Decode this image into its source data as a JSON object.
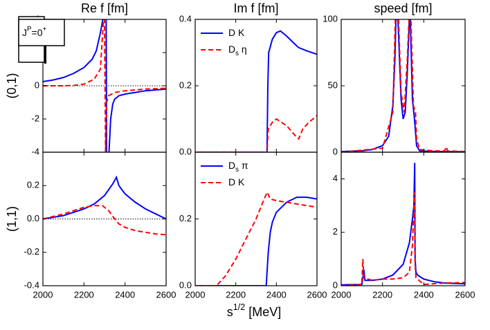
{
  "column_titles": [
    "Re f [fm]",
    "Im f [fm]",
    "speed [fm]"
  ],
  "row_labels": [
    "(0,1)",
    "(1,1)"
  ],
  "box_label": [
    "J",
    "P",
    "=0",
    "+"
  ],
  "x_label": [
    "s",
    "1/2",
    " [MeV]"
  ],
  "chart_data": [
    {
      "type": "line",
      "zero_line": true,
      "xlim": [
        2000,
        2600
      ],
      "xticks": [
        2000,
        2200,
        2400,
        2600
      ],
      "xtick_labels": false,
      "ylim": [
        -4,
        4
      ],
      "yticks": [
        -4,
        -2,
        0,
        2,
        4
      ],
      "series": [
        {
          "color": "#0000ff",
          "style": "solid",
          "x": [
            2000,
            2050,
            2100,
            2150,
            2200,
            2240,
            2260,
            2280,
            2292,
            2300,
            2308,
            2310,
            2316,
            2322,
            2330,
            2340,
            2350,
            2370,
            2400,
            2450,
            2500,
            2550,
            2600
          ],
          "values": [
            0.25,
            0.35,
            0.5,
            0.75,
            1.1,
            1.6,
            2.1,
            3.2,
            4,
            null,
            4,
            -4,
            null,
            -4,
            -2,
            -1.1,
            -0.8,
            -0.6,
            -0.5,
            -0.4,
            -0.3,
            -0.25,
            -0.2
          ]
        },
        {
          "color": "#ff0000",
          "style": "dashed",
          "x": [
            2000,
            2100,
            2150,
            2200,
            2250,
            2280,
            2295,
            2300,
            2305,
            2310,
            2320,
            2350,
            2400,
            2500,
            2600
          ],
          "values": [
            0,
            0,
            0.02,
            0.1,
            0.4,
            1.0,
            4,
            4,
            -4,
            -1,
            -0.6,
            -0.4,
            -0.3,
            -0.2,
            -0.15
          ]
        }
      ]
    },
    {
      "type": "line",
      "legend": "upper left",
      "xlim": [
        2000,
        2600
      ],
      "xticks": [
        2000,
        2200,
        2400,
        2600
      ],
      "xtick_labels": false,
      "ylim": [
        0,
        0.4
      ],
      "yticks": [
        {
          "value": 0,
          "label": "0.0"
        },
        0.2,
        0.4
      ],
      "series": [
        {
          "name": [
            "D K"
          ],
          "color": "#0000ff",
          "style": "solid",
          "x": [
            2000,
            2354,
            2358,
            2362,
            2380,
            2400,
            2420,
            2450,
            2500,
            2510,
            2550,
            2600
          ],
          "values": [
            0,
            0,
            0.2,
            0.3,
            0.34,
            0.36,
            0.365,
            0.35,
            0.32,
            0.315,
            0.305,
            0.295
          ]
        },
        {
          "name": [
            "D",
            "s",
            " η"
          ],
          "color": "#ff0000",
          "style": "dashed",
          "x": [
            2000,
            2354,
            2360,
            2380,
            2400,
            2450,
            2500,
            2510,
            2530,
            2560,
            2600
          ],
          "values": [
            0,
            0,
            0.07,
            0.09,
            0.1,
            0.08,
            0.045,
            0.04,
            0.07,
            0.09,
            0.11
          ]
        }
      ]
    },
    {
      "type": "line",
      "xlim": [
        2000,
        2600
      ],
      "xticks": [
        2000,
        2200,
        2400,
        2600
      ],
      "xtick_labels": false,
      "ylim": [
        0,
        100
      ],
      "yticks": [
        0,
        50,
        100
      ],
      "series": [
        {
          "color": "#0000ff",
          "style": "solid",
          "x": [
            2000,
            2100,
            2150,
            2200,
            2230,
            2250,
            2260,
            2265,
            2275,
            2290,
            2300,
            2310,
            2320,
            2330,
            2335,
            2345,
            2355,
            2365,
            2380,
            2450,
            2600
          ],
          "values": [
            0.5,
            1,
            2,
            5,
            12,
            35,
            70,
            100,
            100,
            40,
            25,
            30,
            60,
            100,
            100,
            40,
            25,
            5,
            1,
            0.5,
            0.3
          ]
        },
        {
          "color": "#ff0000",
          "style": "dashed",
          "x": [
            2000,
            2200,
            2250,
            2262,
            2278,
            2290,
            2305,
            2320,
            2328,
            2338,
            2350,
            2360,
            2365,
            2380,
            2450,
            2500,
            2510,
            2515,
            2600
          ],
          "values": [
            0,
            3,
            30,
            100,
            100,
            45,
            30,
            70,
            100,
            100,
            35,
            30,
            10,
            2,
            1,
            1,
            4,
            1,
            0.5
          ]
        }
      ]
    },
    {
      "type": "line",
      "zero_line": true,
      "xlim": [
        2000,
        2600
      ],
      "xticks": [
        2000,
        2200,
        2400,
        2600
      ],
      "xtick_labels": true,
      "ylim": [
        -0.4,
        0.4
      ],
      "yticks": [
        -0.4,
        -0.2,
        {
          "value": 0,
          "label": "0.0"
        },
        0.2
      ],
      "series": [
        {
          "color": "#0000ff",
          "style": "solid",
          "x": [
            2000,
            2100,
            2200,
            2250,
            2300,
            2340,
            2358,
            2370,
            2400,
            2450,
            2500,
            2550,
            2600
          ],
          "values": [
            0,
            0.02,
            0.06,
            0.09,
            0.14,
            0.21,
            0.25,
            0.2,
            0.15,
            0.1,
            0.06,
            0.03,
            0
          ]
        },
        {
          "color": "#ff0000",
          "style": "dashed",
          "x": [
            2000,
            2100,
            2150,
            2200,
            2250,
            2290,
            2320,
            2350,
            2370,
            2400,
            2450,
            2500,
            2550,
            2600
          ],
          "values": [
            0,
            0.03,
            0.05,
            0.07,
            0.08,
            0.08,
            0.05,
            0,
            -0.03,
            -0.05,
            -0.07,
            -0.08,
            -0.09,
            -0.095
          ]
        }
      ]
    },
    {
      "type": "line",
      "legend": "upper left",
      "xlim": [
        2000,
        2600
      ],
      "xticks": [
        2000,
        2200,
        2400,
        2600
      ],
      "xtick_labels": true,
      "ylim": [
        0,
        0.4
      ],
      "yticks": [
        {
          "value": 0,
          "label": "0.0"
        },
        0.2
      ],
      "series": [
        {
          "name": [
            "D",
            "s",
            " π"
          ],
          "color": "#0000ff",
          "style": "solid",
          "x": [
            2000,
            2350,
            2355,
            2360,
            2370,
            2380,
            2400,
            2450,
            2500,
            2550,
            2600
          ],
          "values": [
            0,
            0,
            0.05,
            0.1,
            0.16,
            0.19,
            0.22,
            0.25,
            0.265,
            0.265,
            0.26
          ]
        },
        {
          "name": [
            "D K"
          ],
          "color": "#ff0000",
          "style": "dashed",
          "x": [
            2000,
            2105,
            2150,
            2200,
            2250,
            2300,
            2340,
            2355,
            2370,
            2400,
            2500,
            2600
          ],
          "values": [
            0,
            0,
            0.03,
            0.08,
            0.14,
            0.2,
            0.26,
            0.28,
            0.26,
            0.255,
            0.245,
            0.235
          ]
        }
      ]
    },
    {
      "type": "line",
      "xlim": [
        2000,
        2600
      ],
      "xticks": [
        2000,
        2200,
        2400,
        2600
      ],
      "xtick_labels": true,
      "ylim": [
        0,
        5
      ],
      "yticks": [
        0,
        2,
        4
      ],
      "series": [
        {
          "color": "#0000ff",
          "style": "solid",
          "x": [
            2000,
            2100,
            2105,
            2110,
            2115,
            2150,
            2200,
            2250,
            2300,
            2330,
            2345,
            2352,
            2356,
            2358,
            2362,
            2370,
            2400,
            2450,
            2500,
            2600
          ],
          "values": [
            0.03,
            0.05,
            0.3,
            0.6,
            0.2,
            0.2,
            0.25,
            0.4,
            0.8,
            1.6,
            2.5,
            3,
            4.6,
            1,
            0.5,
            0.4,
            0.25,
            0.15,
            0.1,
            0.07
          ]
        },
        {
          "color": "#ff0000",
          "style": "dashed",
          "x": [
            2000,
            2100,
            2105,
            2110,
            2150,
            2200,
            2250,
            2300,
            2330,
            2345,
            2350,
            2355,
            2358,
            2362,
            2400,
            2500,
            2600
          ],
          "values": [
            0,
            0.05,
            1.0,
            0.3,
            0.2,
            0.25,
            0.25,
            0.3,
            0.5,
            1.5,
            2.5,
            3.5,
            0.8,
            0.3,
            0.05,
            0.1,
            0.12
          ]
        }
      ]
    }
  ]
}
